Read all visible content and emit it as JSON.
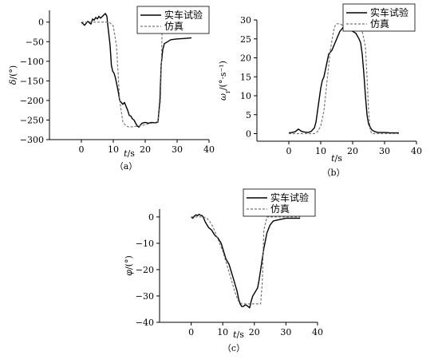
{
  "chart_data": [
    {
      "type": "line",
      "caption": "（a）",
      "xlabel": "t/s",
      "ylabel": "δ/(°)",
      "xlim": [
        -10,
        40
      ],
      "ylim": [
        -300,
        30
      ],
      "xticks": [
        0,
        10,
        20,
        30,
        40
      ],
      "yticks": [
        0,
        -50,
        -100,
        -150,
        -200,
        -250,
        -300
      ],
      "grid": false,
      "legend": "top-right",
      "series": [
        {
          "name": "实车试验",
          "style": "solid",
          "x": [
            0,
            1,
            2,
            3,
            3.5,
            4,
            4.5,
            5,
            5.5,
            6,
            6.5,
            7,
            7.5,
            8,
            8.3,
            8.6,
            9,
            9.4,
            9.8,
            10.2,
            10.6,
            11,
            11.5,
            12,
            12.5,
            13,
            13.5,
            14,
            14.5,
            15,
            15.5,
            16,
            16.5,
            17,
            17.5,
            18,
            18.5,
            19,
            20,
            21,
            22,
            23,
            24,
            24.6,
            25,
            25.5,
            26,
            27,
            28,
            30,
            32,
            34.5
          ],
          "y": [
            0,
            -8,
            2,
            -5,
            8,
            5,
            12,
            8,
            15,
            10,
            14,
            18,
            22,
            15,
            -10,
            -30,
            -60,
            -110,
            -125,
            -130,
            -140,
            -155,
            -175,
            -200,
            -205,
            -210,
            -205,
            -215,
            -225,
            -238,
            -240,
            -247,
            -250,
            -258,
            -265,
            -268,
            -263,
            -258,
            -256,
            -258,
            -256,
            -257,
            -255,
            -200,
            -110,
            -70,
            -55,
            -50,
            -45,
            -43,
            -42,
            -40
          ]
        },
        {
          "name": "仿真",
          "style": "dashed",
          "x": [
            0,
            8,
            9,
            10,
            11,
            12,
            13,
            14,
            15,
            16,
            17,
            18,
            20,
            22,
            24,
            24.8,
            25.3,
            26,
            30,
            34.5
          ],
          "y": [
            0,
            0,
            -2,
            -10,
            -60,
            -200,
            -255,
            -265,
            -268,
            -267,
            -266,
            -265,
            -262,
            -258,
            -258,
            -200,
            -20,
            0,
            0,
            0
          ]
        }
      ]
    },
    {
      "type": "line",
      "caption": "（b）",
      "xlabel": "t/s",
      "ylabel": "ω_r/(°·s⁻¹)",
      "xlim": [
        -10,
        40
      ],
      "ylim": [
        -2,
        30
      ],
      "xticks": [
        0,
        10,
        20,
        30,
        40
      ],
      "yticks": [
        0,
        5,
        10,
        15,
        20,
        25,
        30
      ],
      "grid": false,
      "legend": "top-right",
      "series": [
        {
          "name": "实车试验",
          "style": "solid",
          "x": [
            0,
            1,
            2,
            3,
            4,
            5,
            6,
            7,
            8,
            8.5,
            9,
            9.5,
            10,
            10.5,
            11,
            11.5,
            12,
            12.5,
            13,
            13.5,
            14,
            14.5,
            15,
            15.5,
            16,
            16.5,
            17,
            17.5,
            18,
            19,
            20,
            21,
            22,
            22.5,
            23,
            23.5,
            24,
            24.5,
            25,
            26,
            27,
            28,
            30,
            32,
            34.5
          ],
          "y": [
            0.2,
            0.3,
            0.5,
            1.2,
            0.6,
            0.4,
            0.3,
            0.6,
            1.5,
            3,
            6,
            9,
            12,
            14,
            15,
            17,
            19,
            21,
            21.5,
            22,
            23,
            24,
            25,
            26,
            27,
            27.5,
            28,
            28.5,
            28.5,
            27.5,
            27,
            26.5,
            25,
            24,
            21,
            16,
            10,
            5,
            2.5,
            1,
            0.5,
            0.3,
            0.3,
            0.2,
            0.2
          ]
        },
        {
          "name": "仿真",
          "style": "dashed",
          "x": [
            0,
            6,
            8,
            9,
            10,
            11,
            12,
            13,
            14,
            14.5,
            15,
            16,
            17,
            18,
            20,
            22,
            23,
            24,
            24.5,
            25,
            25.5,
            26,
            30,
            34.5
          ],
          "y": [
            0,
            0,
            0,
            0.5,
            2,
            6,
            14,
            22,
            27,
            28.5,
            29,
            29,
            28.5,
            28,
            28,
            27.5,
            27,
            23,
            15,
            6,
            1,
            0,
            0,
            0
          ]
        }
      ]
    },
    {
      "type": "line",
      "caption": "（c）",
      "xlabel": "t/s",
      "ylabel": "φ/(°)",
      "xlim": [
        -10,
        40
      ],
      "ylim": [
        -40,
        3
      ],
      "xticks": [
        0,
        10,
        20,
        30,
        40
      ],
      "yticks": [
        0,
        -10,
        -20,
        -30,
        -40
      ],
      "grid": false,
      "legend": "top-right",
      "series": [
        {
          "name": "实车试验",
          "style": "solid",
          "x": [
            0,
            0.5,
            1,
            1.5,
            2,
            2.5,
            3,
            3.5,
            4,
            4.5,
            5,
            5.5,
            6,
            6.5,
            7,
            7.5,
            8,
            8.5,
            9,
            9.5,
            10,
            10.5,
            11,
            11.5,
            12,
            12.5,
            13,
            13.5,
            14,
            14.5,
            15,
            15.5,
            16,
            16.5,
            17,
            17.5,
            18,
            18.5,
            19,
            19.5,
            20,
            20.5,
            21,
            21.5,
            22,
            22.5,
            23,
            24,
            25,
            26,
            28,
            30,
            32,
            34.5
          ],
          "y": [
            0,
            -0.5,
            0.3,
            0.8,
            0.5,
            1,
            0.6,
            0.5,
            -0.5,
            -2,
            -3,
            -4,
            -4.5,
            -5,
            -6,
            -7,
            -7.5,
            -8,
            -9,
            -10,
            -12,
            -14,
            -16,
            -17,
            -18,
            -20,
            -22,
            -24,
            -26,
            -28,
            -31,
            -33,
            -34,
            -34,
            -33.5,
            -33.5,
            -34,
            -34.5,
            -32,
            -30,
            -29,
            -28,
            -27,
            -24,
            -20,
            -16,
            -12,
            -6,
            -3,
            -1.5,
            -1,
            -0.5,
            -0.5,
            -0.5
          ]
        },
        {
          "name": "仿真",
          "style": "dashed",
          "x": [
            0,
            4,
            5,
            6,
            7,
            8,
            9,
            10,
            11,
            12,
            13,
            14,
            15,
            16,
            17,
            18,
            20,
            21,
            22,
            22.5,
            23,
            24,
            26,
            30,
            34.5
          ],
          "y": [
            0,
            0,
            -0.5,
            -2,
            -4,
            -7,
            -10,
            -13,
            -17,
            -21,
            -25,
            -29,
            -32,
            -33,
            -33,
            -33,
            -33,
            -33,
            -33,
            -25,
            -5,
            0,
            0,
            0,
            0
          ]
        }
      ]
    }
  ]
}
